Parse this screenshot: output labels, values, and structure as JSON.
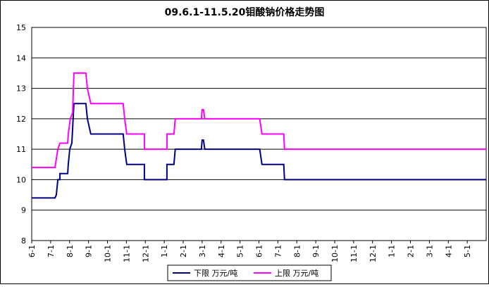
{
  "chart_data": {
    "type": "line",
    "title": "09.6.1-11.5.20钼酸钠价格走势图",
    "xlim": [
      0,
      24
    ],
    "xticks": [
      {
        "value": 0,
        "label": "6-1"
      },
      {
        "value": 1,
        "label": "7-1"
      },
      {
        "value": 2,
        "label": "8-1"
      },
      {
        "value": 3,
        "label": "9-1"
      },
      {
        "value": 4,
        "label": "10-1"
      },
      {
        "value": 5,
        "label": "11-1"
      },
      {
        "value": 6,
        "label": "12-1"
      },
      {
        "value": 7,
        "label": "1-1"
      },
      {
        "value": 8,
        "label": "2-1"
      },
      {
        "value": 9,
        "label": "3-1"
      },
      {
        "value": 10,
        "label": "4-1"
      },
      {
        "value": 11,
        "label": "5-1"
      },
      {
        "value": 12,
        "label": "6-1"
      },
      {
        "value": 13,
        "label": "7-1"
      },
      {
        "value": 14,
        "label": "8-1"
      },
      {
        "value": 15,
        "label": "9-1"
      },
      {
        "value": 16,
        "label": "10-1"
      },
      {
        "value": 17,
        "label": "11-1"
      },
      {
        "value": 18,
        "label": "12-1"
      },
      {
        "value": 19,
        "label": "1-1"
      },
      {
        "value": 20,
        "label": "2-1"
      },
      {
        "value": 21,
        "label": "3-1"
      },
      {
        "value": 22,
        "label": "4-1"
      },
      {
        "value": 23,
        "label": "5-1"
      }
    ],
    "ylim": [
      8,
      15
    ],
    "yticks": [
      8,
      9,
      10,
      11,
      12,
      13,
      14,
      15
    ],
    "grid": true,
    "legend": "bottom",
    "series": [
      {
        "name": "下限  万元/吨",
        "color": "#000080",
        "x": [
          0,
          1.23,
          1.3,
          1.38,
          1.49,
          1.49,
          1.9,
          1.93,
          2.01,
          2.12,
          2.23,
          2.86,
          2.94,
          3.12,
          4.83,
          4.91,
          5.02,
          5.95,
          5.95,
          7.14,
          7.14,
          7.51,
          7.58,
          8.96,
          9.0,
          9.07,
          9.14,
          12.04,
          12.16,
          13.31,
          13.35,
          24
        ],
        "values": [
          9.4,
          9.4,
          9.5,
          10,
          10,
          10.2,
          10.2,
          10.5,
          11,
          11.2,
          12.5,
          12.5,
          12,
          11.5,
          11.5,
          11,
          10.5,
          10.5,
          10,
          10,
          10.5,
          10.5,
          11,
          11,
          11.3,
          11.3,
          11,
          11,
          10.5,
          10.5,
          10,
          10
        ]
      },
      {
        "name": "上限  万元/吨",
        "color": "#ff00ff",
        "x": [
          0,
          1.23,
          1.38,
          1.49,
          1.9,
          1.93,
          2.04,
          2.16,
          2.23,
          2.86,
          2.94,
          3.12,
          4.83,
          4.91,
          5.02,
          5.95,
          5.95,
          7.14,
          7.14,
          7.51,
          7.58,
          8.96,
          9.0,
          9.07,
          9.14,
          12.04,
          12.16,
          13.31,
          13.35,
          24
        ],
        "values": [
          10.4,
          10.4,
          11,
          11.2,
          11.2,
          11.5,
          12,
          12.2,
          13.5,
          13.5,
          13,
          12.5,
          12.5,
          12,
          11.5,
          11.5,
          11,
          11,
          11.5,
          11.5,
          12,
          12,
          12.3,
          12.3,
          12,
          12,
          11.5,
          11.5,
          11,
          11
        ]
      }
    ]
  }
}
